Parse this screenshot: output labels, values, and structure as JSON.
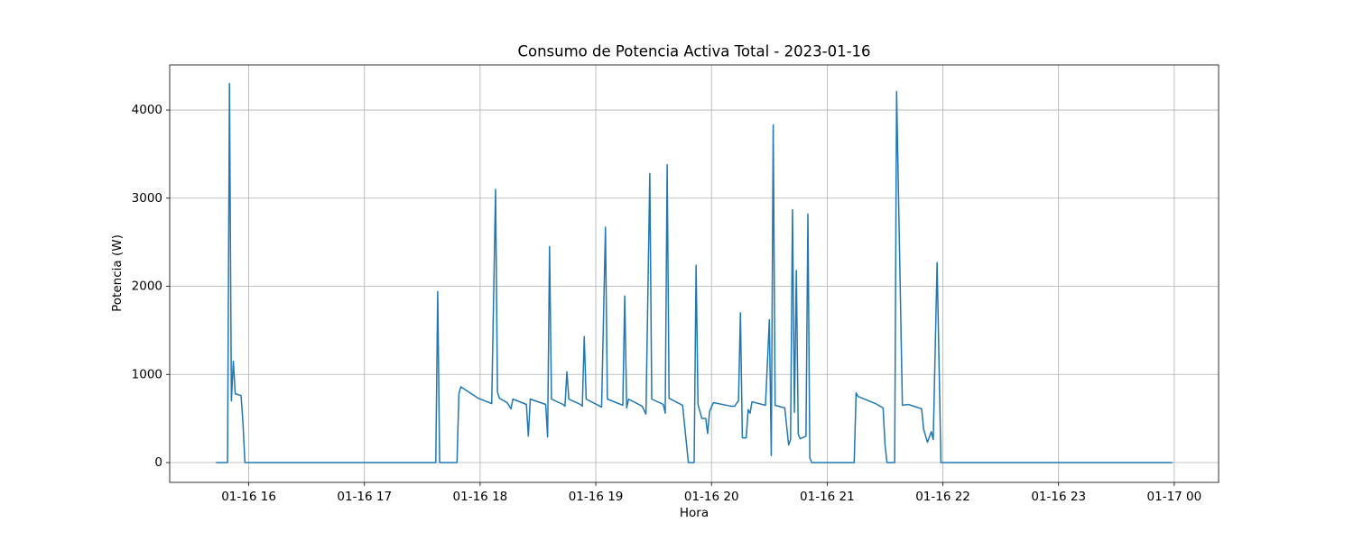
{
  "chart_data": {
    "type": "line",
    "title": "Consumo de Potencia Activa Total - 2023-01-16",
    "x_label": "Hora",
    "y_label": "Potencia (W)",
    "color": "#1f77b4",
    "grid": true,
    "xlim": [
      "01-16 15:19",
      "01-17 00:23"
    ],
    "xticks": [
      {
        "value": "01-16 16:00",
        "label": "01-16 16"
      },
      {
        "value": "01-16 17:00",
        "label": "01-16 17"
      },
      {
        "value": "01-16 18:00",
        "label": "01-16 18"
      },
      {
        "value": "01-16 19:00",
        "label": "01-16 19"
      },
      {
        "value": "01-16 20:00",
        "label": "01-16 20"
      },
      {
        "value": "01-16 21:00",
        "label": "01-16 21"
      },
      {
        "value": "01-16 22:00",
        "label": "01-16 22"
      },
      {
        "value": "01-16 23:00",
        "label": "01-16 23"
      },
      {
        "value": "01-17 00:00",
        "label": "01-17 00"
      }
    ],
    "ylim": [
      -225,
      4512
    ],
    "yticks": [
      0,
      1000,
      2000,
      3000,
      4000
    ],
    "x": [
      "01-16 15:43",
      "01-16 15:49",
      "01-16 15:50",
      "01-16 15:51",
      "01-16 15:52",
      "01-16 15:53",
      "01-16 15:56",
      "01-16 15:57",
      "01-16 15:58",
      "01-16 17:37",
      "01-16 17:38",
      "01-16 17:39",
      "01-16 17:48",
      "01-16 17:49",
      "01-16 17:50",
      "01-16 17:59",
      "01-16 18:06",
      "01-16 18:08",
      "01-16 18:09",
      "01-16 18:10",
      "01-16 18:14",
      "01-16 18:16",
      "01-16 18:17",
      "01-16 18:24",
      "01-16 18:25",
      "01-16 18:26",
      "01-16 18:34",
      "01-16 18:35",
      "01-16 18:36",
      "01-16 18:37",
      "01-16 18:43",
      "01-16 18:44",
      "01-16 18:45",
      "01-16 18:46",
      "01-16 18:52",
      "01-16 18:53",
      "01-16 18:54",
      "01-16 18:55",
      "01-16 19:03",
      "01-16 19:05",
      "01-16 19:06",
      "01-16 19:14",
      "01-16 19:15",
      "01-16 19:16",
      "01-16 19:17",
      "01-16 19:24",
      "01-16 19:26",
      "01-16 19:28",
      "01-16 19:29",
      "01-16 19:35",
      "01-16 19:36",
      "01-16 19:37",
      "01-16 19:38",
      "01-16 19:45",
      "01-16 19:48",
      "01-16 19:51",
      "01-16 19:52",
      "01-16 19:53",
      "01-16 19:55",
      "01-16 19:57",
      "01-16 19:58",
      "01-16 19:59",
      "01-16 20:01",
      "01-16 20:10",
      "01-16 20:12",
      "01-16 20:14",
      "01-16 20:15",
      "01-16 20:16",
      "01-16 20:18",
      "01-16 20:19",
      "01-16 20:20",
      "01-16 20:21",
      "01-16 20:28",
      "01-16 20:30",
      "01-16 20:31",
      "01-16 20:32",
      "01-16 20:33",
      "01-16 20:38",
      "01-16 20:40",
      "01-16 20:41",
      "01-16 20:42",
      "01-16 20:43",
      "01-16 20:44",
      "01-16 20:45",
      "01-16 20:46",
      "01-16 20:49",
      "01-16 20:50",
      "01-16 20:51",
      "01-16 20:52",
      "01-16 21:14",
      "01-16 21:15",
      "01-16 21:16",
      "01-16 21:25",
      "01-16 21:29",
      "01-16 21:30",
      "01-16 21:31",
      "01-16 21:35",
      "01-16 21:36",
      "01-16 21:39",
      "01-16 21:42",
      "01-16 21:49",
      "01-16 21:50",
      "01-16 21:52",
      "01-16 21:54",
      "01-16 21:55",
      "01-16 21:57",
      "01-16 21:59",
      "01-16 23:59"
    ],
    "values": [
      0,
      0,
      4300,
      700,
      1150,
      780,
      760,
      450,
      0,
      0,
      1940,
      0,
      0,
      780,
      860,
      730,
      670,
      3100,
      800,
      730,
      680,
      610,
      720,
      660,
      300,
      720,
      660,
      290,
      2450,
      720,
      660,
      640,
      1030,
      720,
      660,
      640,
      1430,
      720,
      630,
      2670,
      720,
      650,
      1890,
      620,
      720,
      640,
      550,
      3280,
      720,
      660,
      560,
      3380,
      730,
      650,
      0,
      0,
      2240,
      660,
      500,
      500,
      330,
      580,
      680,
      640,
      640,
      700,
      1700,
      280,
      280,
      600,
      560,
      690,
      650,
      1620,
      80,
      3830,
      650,
      620,
      200,
      260,
      2870,
      570,
      2180,
      320,
      270,
      300,
      2820,
      50,
      0,
      0,
      790,
      750,
      670,
      620,
      200,
      0,
      0,
      4210,
      650,
      660,
      610,
      380,
      230,
      350,
      260,
      2270,
      0,
      0
    ]
  }
}
